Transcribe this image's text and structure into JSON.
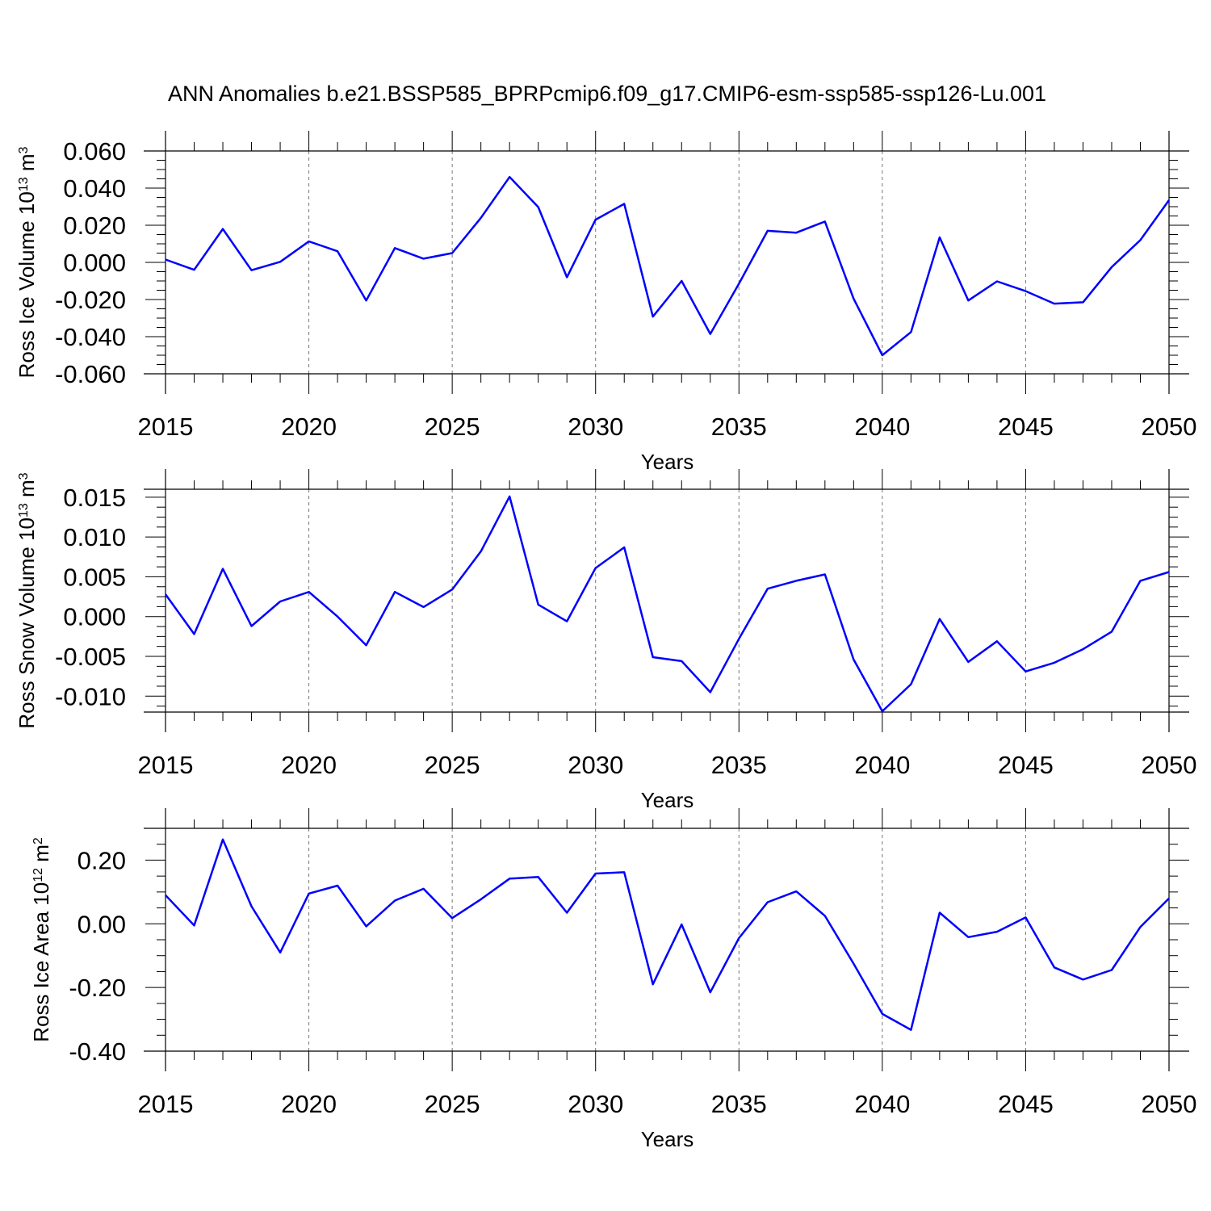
{
  "title": "ANN Anomalies b.e21.BSSP585_BPRPcmip6.f09_g17.CMIP6-esm-ssp585-ssp126-Lu.001",
  "chart_data": [
    {
      "type": "line",
      "ylabel": "Ross Ice Volume",
      "ylabel_unit_prefix": "10",
      "ylabel_unit_exp": "13",
      "ylabel_unit_base": " m",
      "ylabel_unit_pow": "3",
      "xlabel": "Years",
      "xlim": [
        2015,
        2050
      ],
      "ylim": [
        -0.06,
        0.06
      ],
      "xticks": [
        "2015",
        "2020",
        "2025",
        "2030",
        "2035",
        "2040",
        "2045",
        "2050"
      ],
      "yticks": [
        "-0.060",
        "-0.040",
        "-0.020",
        "0.000",
        "0.020",
        "0.040",
        "0.060"
      ],
      "grid": "dashed vertical at major x ticks",
      "color": "#0000ff",
      "x": [
        2015,
        2016,
        2017,
        2018,
        2019,
        2020,
        2021,
        2022,
        2023,
        2024,
        2025,
        2026,
        2027,
        2028,
        2029,
        2030,
        2031,
        2032,
        2033,
        2034,
        2035,
        2036,
        2037,
        2038,
        2039,
        2040,
        2041,
        2042,
        2043,
        2044,
        2045,
        2046,
        2047,
        2048,
        2049,
        2050
      ],
      "values": [
        0.0015,
        -0.004,
        0.018,
        -0.0042,
        0.0003,
        0.0113,
        0.006,
        -0.0205,
        0.0077,
        0.002,
        0.005,
        0.024,
        0.046,
        0.0298,
        -0.008,
        0.023,
        0.0315,
        -0.0292,
        -0.01,
        -0.0385,
        -0.0115,
        0.017,
        0.016,
        0.022,
        -0.0195,
        -0.05,
        -0.0375,
        0.0135,
        -0.0205,
        -0.0102,
        -0.0155,
        -0.0222,
        -0.0215,
        -0.0025,
        0.012,
        0.0335
      ]
    },
    {
      "type": "line",
      "ylabel": "Ross Snow Volume",
      "ylabel_unit_prefix": "10",
      "ylabel_unit_exp": "13",
      "ylabel_unit_base": " m",
      "ylabel_unit_pow": "3",
      "xlabel": "Years",
      "xlim": [
        2015,
        2050
      ],
      "ylim": [
        -0.012,
        0.016
      ],
      "xticks": [
        "2015",
        "2020",
        "2025",
        "2030",
        "2035",
        "2040",
        "2045",
        "2050"
      ],
      "yticks": [
        "-0.010",
        "-0.005",
        "0.000",
        "0.005",
        "0.010",
        "0.015"
      ],
      "grid": "dashed vertical at major x ticks",
      "color": "#0000ff",
      "x": [
        2015,
        2016,
        2017,
        2018,
        2019,
        2020,
        2021,
        2022,
        2023,
        2024,
        2025,
        2026,
        2027,
        2028,
        2029,
        2030,
        2031,
        2032,
        2033,
        2034,
        2035,
        2036,
        2037,
        2038,
        2039,
        2040,
        2041,
        2042,
        2043,
        2044,
        2045,
        2046,
        2047,
        2048,
        2049,
        2050
      ],
      "values": [
        0.0028,
        -0.0022,
        0.006,
        -0.0012,
        0.0019,
        0.0031,
        0.0,
        -0.0036,
        0.0031,
        0.0012,
        0.0034,
        0.0082,
        0.0151,
        0.0015,
        -0.0006,
        0.0061,
        0.0087,
        -0.0051,
        -0.0056,
        -0.0095,
        -0.0028,
        0.0035,
        0.0045,
        0.0053,
        -0.0054,
        -0.0119,
        -0.0085,
        -0.0003,
        -0.0057,
        -0.0031,
        -0.0069,
        -0.0058,
        -0.0041,
        -0.0019,
        0.0045,
        0.0056
      ]
    },
    {
      "type": "line",
      "ylabel": "Ross Ice Area",
      "ylabel_unit_prefix": "10",
      "ylabel_unit_exp": "12",
      "ylabel_unit_base": " m",
      "ylabel_unit_pow": "2",
      "xlabel": "Years",
      "xlim": [
        2015,
        2050
      ],
      "ylim": [
        -0.4,
        0.3
      ],
      "xticks": [
        "2015",
        "2020",
        "2025",
        "2030",
        "2035",
        "2040",
        "2045",
        "2050"
      ],
      "yticks": [
        "-0.40",
        "-0.20",
        "0.00",
        "0.20"
      ],
      "grid": "dashed vertical at major x ticks",
      "color": "#0000ff",
      "x": [
        2015,
        2016,
        2017,
        2018,
        2019,
        2020,
        2021,
        2022,
        2023,
        2024,
        2025,
        2026,
        2027,
        2028,
        2029,
        2030,
        2031,
        2032,
        2033,
        2034,
        2035,
        2036,
        2037,
        2038,
        2039,
        2040,
        2041,
        2042,
        2043,
        2044,
        2045,
        2046,
        2047,
        2048,
        2049,
        2050
      ],
      "values": [
        0.09,
        -0.005,
        0.265,
        0.055,
        -0.09,
        0.095,
        0.12,
        -0.008,
        0.073,
        0.11,
        0.018,
        0.077,
        0.142,
        0.147,
        0.035,
        0.158,
        0.162,
        -0.19,
        -0.002,
        -0.215,
        -0.045,
        0.068,
        0.102,
        0.025,
        -0.125,
        -0.283,
        -0.333,
        0.035,
        -0.042,
        -0.025,
        0.02,
        -0.137,
        -0.175,
        -0.145,
        -0.01,
        0.08
      ]
    }
  ]
}
